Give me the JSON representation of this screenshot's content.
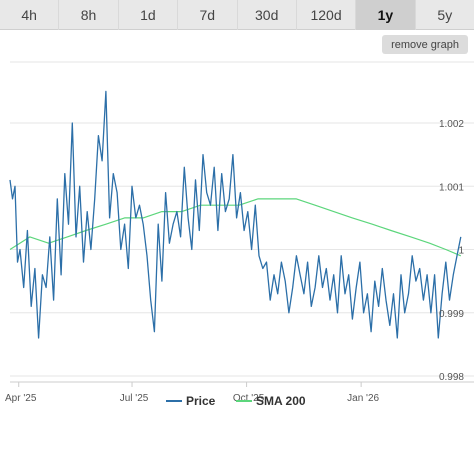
{
  "tabs": [
    {
      "label": "4h",
      "active": false
    },
    {
      "label": "8h",
      "active": false
    },
    {
      "label": "1d",
      "active": false
    },
    {
      "label": "7d",
      "active": false
    },
    {
      "label": "30d",
      "active": false
    },
    {
      "label": "120d",
      "active": false
    },
    {
      "label": "1y",
      "active": true
    },
    {
      "label": "5y",
      "active": false
    }
  ],
  "remove_graph_label": "remove graph",
  "colors": {
    "price": "#2c6fa8",
    "sma": "#5cd67c",
    "grid": "#e6e6e6",
    "axis": "#cccccc"
  },
  "chart_data": {
    "type": "line",
    "title": "",
    "xlabel": "",
    "ylabel": "",
    "x_range": [
      "2025-03-25",
      "2026-03-23"
    ],
    "ylim": [
      0.998,
      1.002
    ],
    "x_ticks": [
      {
        "date": "2025-04-01",
        "label": "Apr '25"
      },
      {
        "date": "2025-07-01",
        "label": "Jul '25"
      },
      {
        "date": "2025-10-01",
        "label": "Oct '25"
      },
      {
        "date": "2026-01-01",
        "label": "Jan '26"
      }
    ],
    "y_ticks": [
      {
        "value": 0.998,
        "label": "0.998"
      },
      {
        "value": 0.999,
        "label": "0.999"
      },
      {
        "value": 1.0,
        "label": "1"
      },
      {
        "value": 1.001,
        "label": "1.001"
      },
      {
        "value": 1.002,
        "label": "1.002"
      }
    ],
    "grid": true,
    "legend_position": "bottom",
    "series": [
      {
        "name": "Price",
        "x": [
          "2025-03-25",
          "2025-03-27",
          "2025-03-29",
          "2025-03-31",
          "2025-04-02",
          "2025-04-05",
          "2025-04-08",
          "2025-04-11",
          "2025-04-14",
          "2025-04-17",
          "2025-04-20",
          "2025-04-23",
          "2025-04-26",
          "2025-04-29",
          "2025-05-02",
          "2025-05-05",
          "2025-05-08",
          "2025-05-11",
          "2025-05-14",
          "2025-05-17",
          "2025-05-20",
          "2025-05-23",
          "2025-05-26",
          "2025-05-29",
          "2025-06-01",
          "2025-06-04",
          "2025-06-07",
          "2025-06-10",
          "2025-06-13",
          "2025-06-16",
          "2025-06-19",
          "2025-06-22",
          "2025-06-25",
          "2025-06-28",
          "2025-07-01",
          "2025-07-04",
          "2025-07-07",
          "2025-07-10",
          "2025-07-13",
          "2025-07-16",
          "2025-07-19",
          "2025-07-22",
          "2025-07-25",
          "2025-07-28",
          "2025-07-31",
          "2025-08-03",
          "2025-08-06",
          "2025-08-09",
          "2025-08-12",
          "2025-08-15",
          "2025-08-18",
          "2025-08-21",
          "2025-08-24",
          "2025-08-27",
          "2025-08-30",
          "2025-09-02",
          "2025-09-05",
          "2025-09-08",
          "2025-09-11",
          "2025-09-14",
          "2025-09-17",
          "2025-09-20",
          "2025-09-23",
          "2025-09-26",
          "2025-09-29",
          "2025-10-02",
          "2025-10-05",
          "2025-10-08",
          "2025-10-11",
          "2025-10-14",
          "2025-10-17",
          "2025-10-20",
          "2025-10-23",
          "2025-10-26",
          "2025-10-29",
          "2025-11-01",
          "2025-11-04",
          "2025-11-07",
          "2025-11-10",
          "2025-11-13",
          "2025-11-16",
          "2025-11-19",
          "2025-11-22",
          "2025-11-25",
          "2025-11-28",
          "2025-12-01",
          "2025-12-04",
          "2025-12-07",
          "2025-12-10",
          "2025-12-13",
          "2025-12-16",
          "2025-12-19",
          "2025-12-22",
          "2025-12-25",
          "2025-12-28",
          "2025-12-31",
          "2026-01-03",
          "2026-01-06",
          "2026-01-09",
          "2026-01-12",
          "2026-01-15",
          "2026-01-18",
          "2026-01-21",
          "2026-01-24",
          "2026-01-27",
          "2026-01-30",
          "2026-02-02",
          "2026-02-05",
          "2026-02-08",
          "2026-02-11",
          "2026-02-14",
          "2026-02-17",
          "2026-02-20",
          "2026-02-23",
          "2026-02-26",
          "2026-03-01",
          "2026-03-04",
          "2026-03-07",
          "2026-03-10",
          "2026-03-13",
          "2026-03-16",
          "2026-03-19",
          "2026-03-22"
        ],
        "values": [
          1.0011,
          1.0008,
          1.001,
          0.9998,
          1.0,
          0.9994,
          1.0003,
          0.9991,
          0.9997,
          0.9986,
          0.9996,
          0.9994,
          1.0002,
          0.9992,
          1.0008,
          0.9996,
          1.0012,
          1.0004,
          1.002,
          1.0002,
          1.001,
          0.9998,
          1.0006,
          1.0,
          1.0008,
          1.0018,
          1.0014,
          1.0025,
          1.0005,
          1.0012,
          1.0009,
          1.0,
          1.0004,
          0.9997,
          1.001,
          1.0005,
          1.0007,
          1.0004,
          0.9999,
          0.9992,
          0.9987,
          1.0004,
          0.9995,
          1.0009,
          1.0001,
          1.0004,
          1.0006,
          1.0002,
          1.0013,
          1.0005,
          1.0,
          1.0011,
          1.0003,
          1.0015,
          1.0009,
          1.0007,
          1.0013,
          1.0003,
          1.0012,
          1.0006,
          1.0008,
          1.0015,
          1.0005,
          1.0009,
          1.0003,
          1.0006,
          1.0,
          1.0007,
          0.9999,
          0.9997,
          0.9998,
          0.9992,
          0.9996,
          0.9993,
          0.9998,
          0.9995,
          0.999,
          0.9994,
          0.9999,
          0.9996,
          0.9993,
          0.9998,
          0.9991,
          0.9994,
          0.9999,
          0.9994,
          0.9997,
          0.9992,
          0.9996,
          0.999,
          0.9999,
          0.9993,
          0.9996,
          0.9989,
          0.9994,
          0.9998,
          0.999,
          0.9993,
          0.9987,
          0.9995,
          0.9991,
          0.9997,
          0.9992,
          0.9988,
          0.9993,
          0.9986,
          0.9996,
          0.999,
          0.9993,
          0.9999,
          0.9995,
          0.9997,
          0.9992,
          0.9996,
          0.999,
          0.9996,
          0.9986,
          0.9993,
          0.9998,
          0.9992,
          0.9996,
          0.9999,
          1.0002
        ]
      },
      {
        "name": "SMA 200",
        "x": [
          "2025-03-25",
          "2025-04-10",
          "2025-04-25",
          "2025-05-10",
          "2025-05-25",
          "2025-06-10",
          "2025-06-25",
          "2025-07-10",
          "2025-07-25",
          "2025-08-10",
          "2025-08-25",
          "2025-09-10",
          "2025-09-25",
          "2025-10-10",
          "2025-10-25",
          "2025-11-10",
          "2025-11-25",
          "2025-12-10",
          "2025-12-25",
          "2026-01-10",
          "2026-01-25",
          "2026-02-10",
          "2026-02-25",
          "2026-03-10",
          "2026-03-22"
        ],
        "values": [
          1.0,
          1.0002,
          1.0001,
          1.0002,
          1.0003,
          1.0004,
          1.0005,
          1.0005,
          1.0006,
          1.0006,
          1.0007,
          1.0007,
          1.0007,
          1.0008,
          1.0008,
          1.0008,
          1.0007,
          1.0006,
          1.0005,
          1.0004,
          1.0003,
          1.0002,
          1.0001,
          1.0,
          0.9999
        ]
      }
    ]
  }
}
